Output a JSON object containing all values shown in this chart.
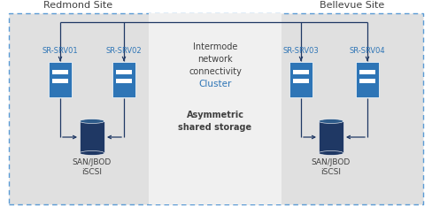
{
  "bg_color": "#ffffff",
  "site_bg": "#e0e0e0",
  "center_bg": "#f0f0f0",
  "dashed_border_color": "#5b9bd5",
  "server_color": "#2e75b6",
  "storage_dark": "#1f3864",
  "storage_top": "#2e5b8a",
  "arrow_color": "#1f3864",
  "label_color": "#2e75b6",
  "text_color": "#404040",
  "center_label_color": "#2e75b6",
  "redmond_label": "Redmond Site",
  "bellevue_label": "Bellevue Site",
  "center_text1": "Intermode\nnetwork\nconnectivity",
  "center_text2": "Cluster",
  "center_text3": "Asymmetric\nshared storage",
  "srv01": "SR-SRV01",
  "srv02": "SR-SRV02",
  "srv03": "SR-SRV03",
  "srv04": "SR-SRV04",
  "san_label": "SAN/JBOD\niSCSI",
  "figw": 4.88,
  "figh": 2.43,
  "dpi": 100
}
